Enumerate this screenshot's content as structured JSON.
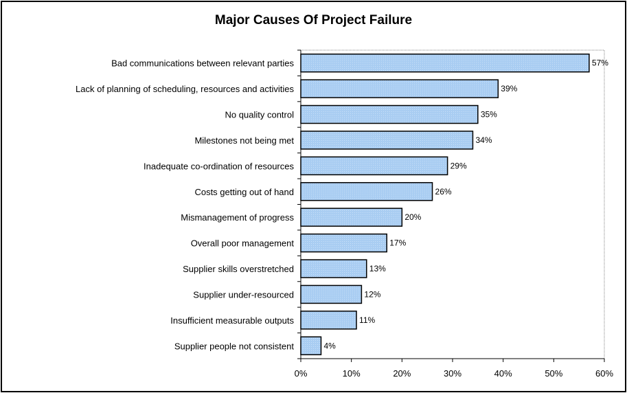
{
  "chart_data": {
    "type": "bar",
    "orientation": "horizontal",
    "title": "Major Causes Of Project Failure",
    "xlabel": "",
    "ylabel": "",
    "xlim": [
      0,
      60
    ],
    "ticks": [
      "0%",
      "10%",
      "20%",
      "30%",
      "40%",
      "50%",
      "60%"
    ],
    "value_suffix": "%",
    "categories": [
      "Bad communications between relevant parties",
      "Lack of planning of scheduling, resources and activities",
      "No quality control",
      "Milestones not being met",
      "Inadequate co-ordination of resources",
      "Costs getting out of hand",
      "Mismanagement of progress",
      "Overall poor management",
      "Supplier skills overstretched",
      "Supplier under-resourced",
      "Insufficient measurable outputs",
      "Supplier people not consistent"
    ],
    "values": [
      57,
      39,
      35,
      34,
      29,
      26,
      20,
      17,
      13,
      12,
      11,
      4
    ],
    "bar_color": "#a9cdf2",
    "bar_border_color": "#000000",
    "grid": false,
    "legend": "none"
  }
}
